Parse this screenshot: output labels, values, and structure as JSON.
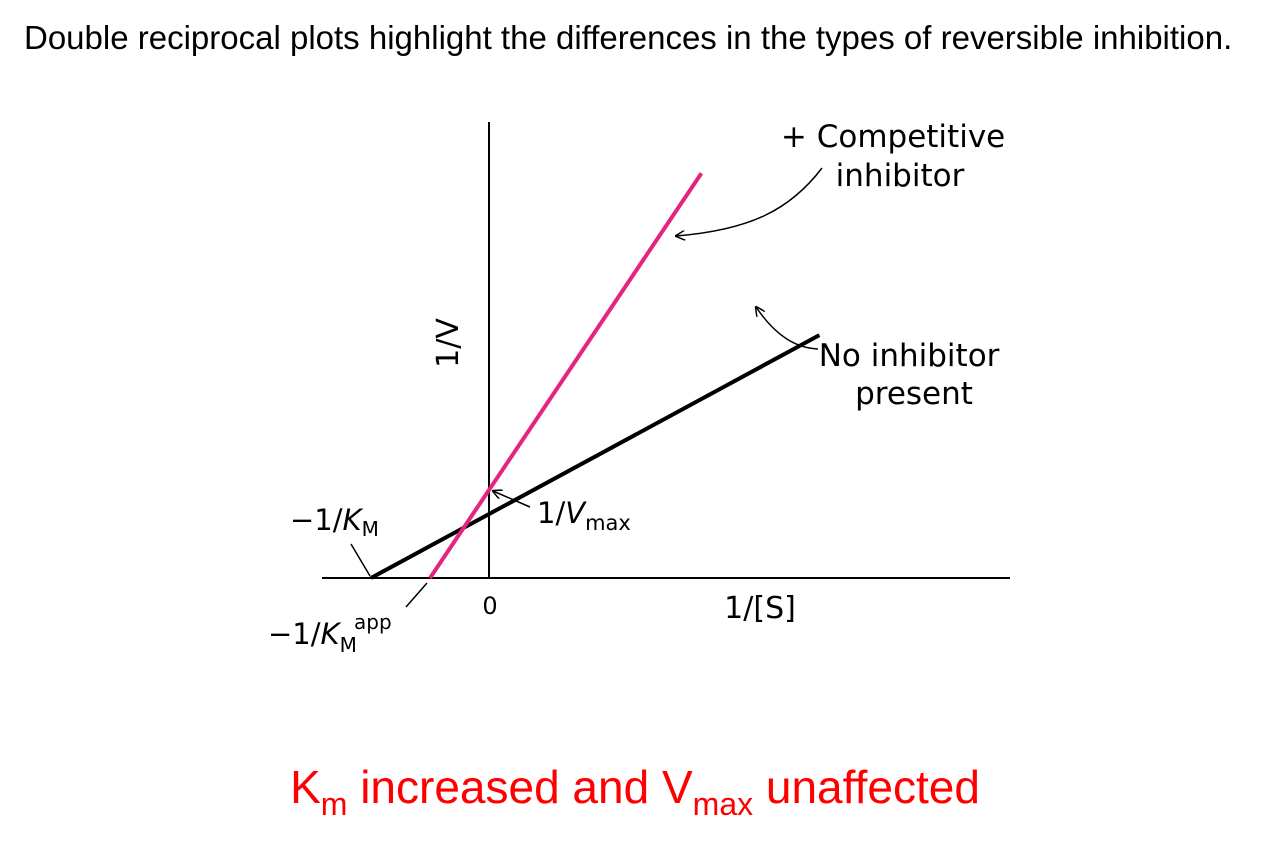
{
  "slide": {
    "heading": "Double reciprocal plots highlight the differences in the types of reversible inhibition.",
    "conclusion": {
      "km_main": "K",
      "km_sub": "m",
      "mid_text": " increased  and V",
      "vmax_sub": "max",
      "end_text": " unaffected"
    }
  },
  "colors": {
    "axis": "#000000",
    "no_inhibitor": "#000000",
    "competitive": "#e6237f",
    "conclusion": "#ff0000"
  },
  "chart_data": {
    "type": "line",
    "xlabel": "1/[S]",
    "ylabel": "1/V",
    "origin_label": "0",
    "xlim": [
      -1.0,
      4.4
    ],
    "ylim": [
      -0.5,
      2.8
    ],
    "series": [
      {
        "name": "No inhibitor present",
        "name_lines": [
          "No inhibitor",
          "present"
        ],
        "color": "#000000",
        "x": [
          -1.0,
          2.8
        ],
        "y": [
          0.0,
          2.76
        ]
      },
      {
        "name": "+ Competitive inhibitor",
        "name_lines": [
          "+ Competitive",
          "inhibitor"
        ],
        "color": "#e6237f",
        "x": [
          -0.5,
          1.8
        ],
        "y": [
          0.0,
          4.6
        ]
      }
    ],
    "annotations": {
      "neg_inv_km": {
        "prefix": "−1/",
        "var": "K",
        "sub": "M"
      },
      "neg_inv_km_app": {
        "prefix": "−1/",
        "var": "K",
        "sub": "M",
        "sup": "app"
      },
      "inv_vmax": {
        "prefix": "1/",
        "var": "V",
        "sub": "max"
      }
    }
  }
}
